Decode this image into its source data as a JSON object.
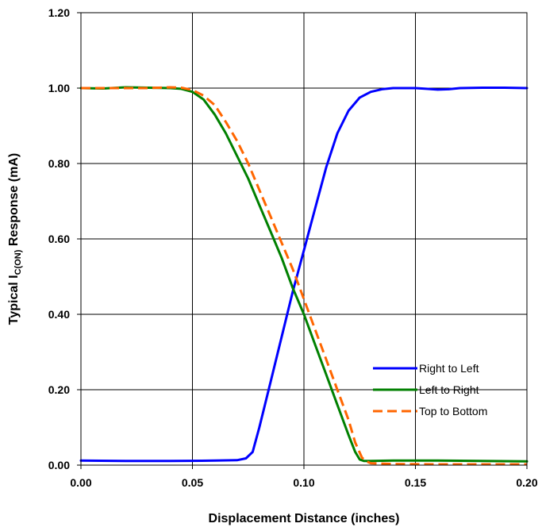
{
  "chart_data": {
    "type": "line",
    "title": "",
    "xlabel": "Displacement Distance (inches)",
    "ylabel_prefix": "Typical I",
    "ylabel_sub": "C(ON)",
    "ylabel_suffix": " Response (mA)",
    "xlim": [
      0,
      0.2
    ],
    "ylim": [
      0,
      1.2
    ],
    "x_ticks": [
      "0.00",
      "0.05",
      "0.10",
      "0.15",
      "0.20"
    ],
    "y_ticks": [
      "0.00",
      "0.20",
      "0.40",
      "0.60",
      "0.80",
      "1.00",
      "1.20"
    ],
    "grid": true,
    "legend_position": "lower-right",
    "series": [
      {
        "name": "Right to Left",
        "color": "#0000ff",
        "dash": "solid",
        "x": [
          0,
          0.02,
          0.04,
          0.06,
          0.07,
          0.074,
          0.077,
          0.08,
          0.085,
          0.09,
          0.095,
          0.1,
          0.105,
          0.11,
          0.115,
          0.12,
          0.125,
          0.13,
          0.135,
          0.14,
          0.145,
          0.15,
          0.155,
          0.16,
          0.165,
          0.17,
          0.18,
          0.19,
          0.2
        ],
        "y": [
          0.012,
          0.011,
          0.011,
          0.012,
          0.013,
          0.018,
          0.035,
          0.1,
          0.22,
          0.34,
          0.46,
          0.57,
          0.68,
          0.79,
          0.88,
          0.94,
          0.975,
          0.99,
          0.997,
          1.0,
          1.0,
          1.0,
          0.998,
          0.996,
          0.997,
          1.0,
          1.001,
          1.001,
          1.0
        ]
      },
      {
        "name": "Left to Right",
        "color": "#008000",
        "dash": "solid",
        "x": [
          0,
          0.01,
          0.02,
          0.03,
          0.04,
          0.045,
          0.05,
          0.055,
          0.06,
          0.065,
          0.07,
          0.075,
          0.08,
          0.085,
          0.09,
          0.095,
          0.1,
          0.105,
          0.11,
          0.115,
          0.12,
          0.123,
          0.125,
          0.127,
          0.13,
          0.14,
          0.16,
          0.18,
          0.2
        ],
        "y": [
          1.0,
          0.999,
          1.002,
          1.001,
          1.0,
          0.998,
          0.99,
          0.97,
          0.93,
          0.88,
          0.82,
          0.76,
          0.69,
          0.62,
          0.55,
          0.47,
          0.4,
          0.32,
          0.24,
          0.16,
          0.08,
          0.035,
          0.015,
          0.011,
          0.011,
          0.012,
          0.012,
          0.011,
          0.01
        ]
      },
      {
        "name": "Top to Bottom",
        "color": "#ff6600",
        "dash": "dashed",
        "x": [
          0,
          0.01,
          0.02,
          0.03,
          0.04,
          0.045,
          0.05,
          0.055,
          0.06,
          0.065,
          0.07,
          0.075,
          0.08,
          0.085,
          0.09,
          0.095,
          0.1,
          0.105,
          0.11,
          0.115,
          0.12,
          0.123,
          0.126,
          0.128,
          0.13,
          0.14,
          0.16,
          0.18,
          0.2
        ],
        "y": [
          1.0,
          1.0,
          1.0,
          1.0,
          1.002,
          1.001,
          0.995,
          0.98,
          0.955,
          0.91,
          0.86,
          0.8,
          0.73,
          0.66,
          0.59,
          0.52,
          0.44,
          0.36,
          0.28,
          0.2,
          0.12,
          0.06,
          0.02,
          0.01,
          0.005,
          0.003,
          0.002,
          0.002,
          0.002
        ]
      }
    ]
  }
}
